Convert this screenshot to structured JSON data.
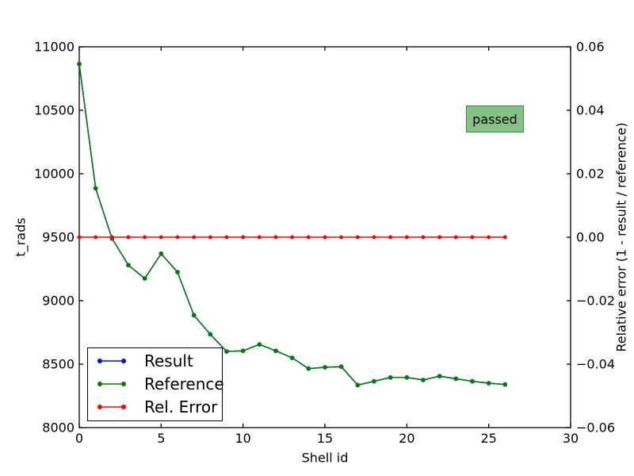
{
  "figure": {
    "badge": {
      "text": "passed",
      "fill": "#85c285",
      "border": "#3c8a3c"
    },
    "chart_data": {
      "type": "line",
      "title": "",
      "xlabel": "Shell id",
      "ylabel_left": "t_rads",
      "ylabel_right": "Relative error (1 - result / reference)",
      "xlim": [
        0,
        30
      ],
      "ylim_left": [
        8000,
        11000
      ],
      "ylim_right": [
        -0.06,
        0.06
      ],
      "grid": false,
      "legend_position": "lower left",
      "xticks": {
        "values": [
          0,
          5,
          10,
          15,
          20,
          25,
          30
        ],
        "labels": [
          "0",
          "5",
          "10",
          "15",
          "20",
          "25",
          "30"
        ]
      },
      "yticks_left": {
        "values": [
          8000,
          8500,
          9000,
          9500,
          10000,
          10500,
          11000
        ],
        "labels": [
          "8000",
          "8500",
          "9000",
          "9500",
          "10000",
          "10500",
          "11000"
        ]
      },
      "yticks_right": {
        "values": [
          -0.06,
          -0.04,
          -0.02,
          0.0,
          0.02,
          0.04,
          0.06
        ],
        "labels": [
          "−0.06",
          "−0.04",
          "−0.02",
          "0.00",
          "0.02",
          "0.04",
          "0.06"
        ]
      },
      "x": [
        0,
        1,
        2,
        3,
        4,
        5,
        6,
        7,
        8,
        9,
        10,
        11,
        12,
        13,
        14,
        15,
        16,
        17,
        18,
        19,
        20,
        21,
        22,
        23,
        24,
        25,
        26
      ],
      "series": [
        {
          "name": "Result",
          "color": "#0000ff",
          "axis": "left",
          "marker_r": 2.8,
          "values": [
            10865,
            9885,
            9490,
            9280,
            9175,
            9370,
            9225,
            8885,
            8735,
            8600,
            8605,
            8655,
            8605,
            8550,
            8465,
            8475,
            8480,
            8335,
            8365,
            8395,
            8395,
            8375,
            8405,
            8385,
            8365,
            8350,
            8340
          ]
        },
        {
          "name": "Reference",
          "color": "#007f00",
          "axis": "left",
          "marker_r": 2.8,
          "values": [
            10865,
            9885,
            9490,
            9280,
            9175,
            9370,
            9225,
            8885,
            8735,
            8600,
            8605,
            8655,
            8605,
            8550,
            8465,
            8475,
            8480,
            8335,
            8365,
            8395,
            8395,
            8375,
            8405,
            8385,
            8365,
            8350,
            8340
          ]
        },
        {
          "name": "Rel. Error",
          "color": "#ff0000",
          "axis": "right",
          "marker_r": 2.5,
          "values": [
            0,
            0,
            0,
            0,
            0,
            0,
            0,
            0,
            0,
            0,
            0,
            0,
            0,
            0,
            0,
            0,
            0,
            0,
            0,
            0,
            0,
            0,
            0,
            0,
            0,
            0,
            0
          ]
        }
      ]
    }
  }
}
